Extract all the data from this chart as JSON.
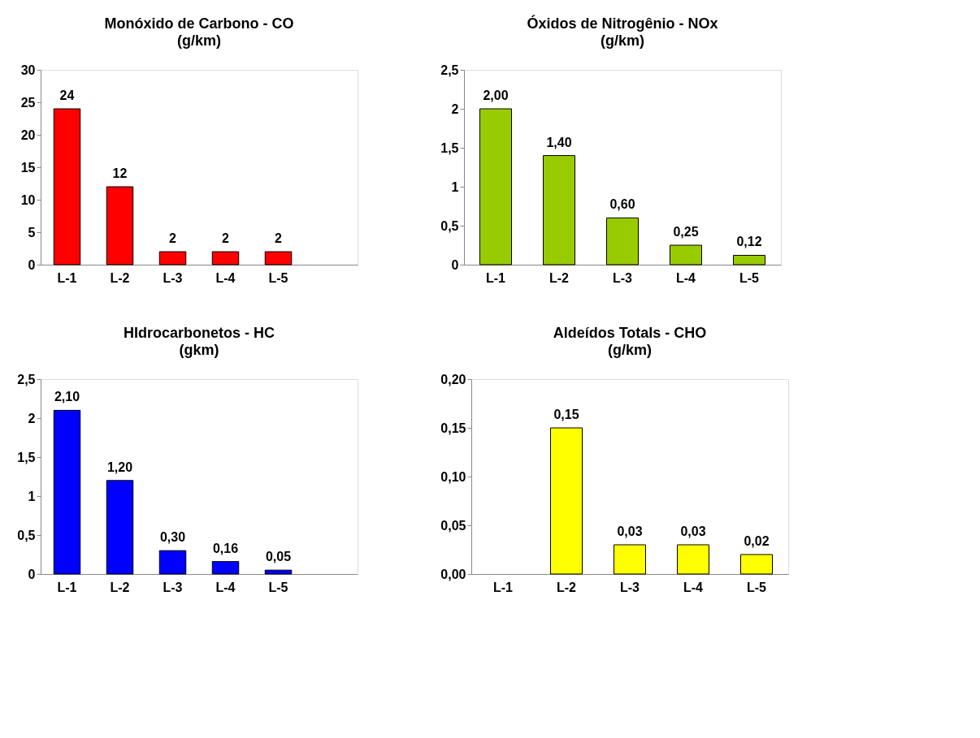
{
  "chart_data": [
    {
      "type": "bar",
      "title": "Monóxido de Carbono - CO",
      "subtitle": "(g/km)",
      "categories": [
        "L-1",
        "L-2",
        "L-3",
        "L-4",
        "L-5",
        null
      ],
      "values": [
        24,
        12,
        2,
        2,
        2,
        null
      ],
      "color": "#ff0000",
      "ylim": [
        0,
        30
      ],
      "yticks": [
        0,
        5,
        10,
        15,
        20,
        25,
        30
      ],
      "data_labels": true,
      "grid": false
    },
    {
      "type": "bar",
      "title": "Óxidos de Nitrogênio - NOx",
      "subtitle": "(g/km)",
      "categories": [
        "L-1",
        "L-2",
        "L-3",
        "L-4",
        "L-5"
      ],
      "values": [
        2.0,
        1.4,
        0.6,
        0.25,
        0.12
      ],
      "value_labels": [
        "2,00",
        "1,40",
        "0,60",
        "0,25",
        "0,12"
      ],
      "color": "#99cc00",
      "ylim": [
        0,
        2.5
      ],
      "yticks": [
        0,
        {
          "value": 0.5,
          "label": "0,5"
        },
        1,
        {
          "value": 1.5,
          "label": "1,5"
        },
        2,
        {
          "value": 2.5,
          "label": "2,5"
        }
      ],
      "grid": false
    },
    {
      "type": "bar",
      "title": "HIdrocarbonetos - HC",
      "subtitle": "(gkm)",
      "categories": [
        "L-1",
        "L-2",
        "L-3",
        "L-4",
        "L-5",
        null
      ],
      "values": [
        2.1,
        1.2,
        0.3,
        0.16,
        0.05,
        null
      ],
      "value_labels": [
        "2,10",
        "1,20",
        "0,30",
        "0,16",
        "0,05",
        null
      ],
      "color": "#0000ff",
      "ylim": [
        0,
        2.5
      ],
      "yticks": [
        0,
        {
          "value": 0.5,
          "label": "0,5"
        },
        1,
        {
          "value": 1.5,
          "label": "1,5"
        },
        2,
        {
          "value": 2.5,
          "label": "2,5"
        }
      ],
      "grid": false
    },
    {
      "type": "bar",
      "title": "Aldeídos Totals - CHO",
      "subtitle": "(g/km)",
      "categories": [
        "L-1",
        "L-2",
        "L-3",
        "L-4",
        "L-5"
      ],
      "values": [
        null,
        0.15,
        0.03,
        0.03,
        0.02
      ],
      "value_labels": [
        null,
        "0,15",
        "0,03",
        "0,03",
        "0,02"
      ],
      "color": "#ffff00",
      "ylim": [
        0,
        0.2
      ],
      "yticks": [
        {
          "value": 0,
          "label": "0,00"
        },
        {
          "value": 0.05,
          "label": "0,05"
        },
        {
          "value": 0.1,
          "label": "0,10"
        },
        {
          "value": 0.15,
          "label": "0,15"
        },
        {
          "value": 0.2,
          "label": "0,20"
        }
      ],
      "grid": false
    }
  ]
}
